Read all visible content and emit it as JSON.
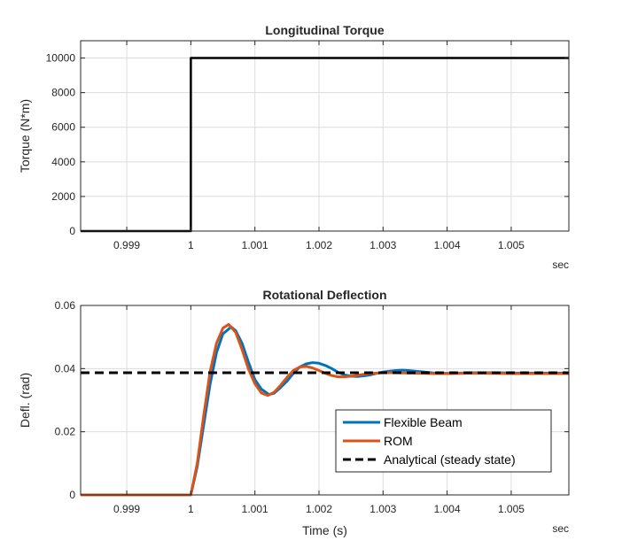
{
  "chart_data": [
    {
      "type": "line",
      "title": "Longitudinal Torque",
      "xlabel": "",
      "ylabel": "Torque (N*m)",
      "x_unit_label": "sec",
      "xlim": [
        0.99828,
        1.0059
      ],
      "ylim": [
        0,
        11000
      ],
      "xticks": [
        0.999,
        1,
        1.001,
        1.002,
        1.003,
        1.004,
        1.005
      ],
      "xtick_labels": [
        "0.999",
        "1",
        "1.001",
        "1.002",
        "1.003",
        "1.004",
        "1.005"
      ],
      "yticks": [
        0,
        2000,
        4000,
        6000,
        8000,
        10000
      ],
      "ytick_labels": [
        "0",
        "2000",
        "4000",
        "6000",
        "8000",
        "10000"
      ],
      "grid": true,
      "series": [
        {
          "color": "#000000",
          "x": [
            0.99828,
            1.0,
            1.0,
            1.0059
          ],
          "y": [
            0,
            0,
            10000,
            10000
          ]
        }
      ]
    },
    {
      "type": "line",
      "title": "Rotational Deflection",
      "xlabel": "Time (s)",
      "ylabel": "Defl. (rad)",
      "x_unit_label": "sec",
      "xlim": [
        0.99828,
        1.0059
      ],
      "ylim": [
        0,
        0.06
      ],
      "xticks": [
        0.999,
        1,
        1.001,
        1.002,
        1.003,
        1.004,
        1.005
      ],
      "xtick_labels": [
        "0.999",
        "1",
        "1.001",
        "1.002",
        "1.003",
        "1.004",
        "1.005"
      ],
      "yticks": [
        0,
        0.02,
        0.04,
        0.06
      ],
      "ytick_labels": [
        "0",
        "0.02",
        "0.04",
        "0.06"
      ],
      "grid": true,
      "legend_position": "lower-right",
      "series": [
        {
          "name": "Flexible Beam",
          "color": "#0072BD",
          "x": [
            0.99828,
            1.0,
            1.0001,
            1.0002,
            1.0003,
            1.0004,
            1.0005,
            1.00063,
            1.0007,
            1.0008,
            1.0009,
            1.001,
            1.0011,
            1.00122,
            1.0013,
            1.0014,
            1.0015,
            1.0016,
            1.0017,
            1.0018,
            1.0019,
            1.002,
            1.0021,
            1.0022,
            1.0023,
            1.0024,
            1.0025,
            1.0026,
            1.0027,
            1.0028,
            1.0029,
            1.003,
            1.0031,
            1.0032,
            1.0033,
            1.0034,
            1.0035,
            1.0036,
            1.0037,
            1.0038,
            1.0039,
            1.004,
            1.0042,
            1.0044,
            1.0046,
            1.0048,
            1.005,
            1.0052,
            1.0055,
            1.0059
          ],
          "y": [
            0,
            0,
            0.009,
            0.022,
            0.035,
            0.045,
            0.051,
            0.0532,
            0.052,
            0.048,
            0.042,
            0.0365,
            0.0335,
            0.0318,
            0.0322,
            0.034,
            0.036,
            0.0385,
            0.0405,
            0.0415,
            0.0419,
            0.0417,
            0.041,
            0.04,
            0.0388,
            0.038,
            0.0376,
            0.0375,
            0.0377,
            0.038,
            0.0385,
            0.0389,
            0.0392,
            0.0394,
            0.0395,
            0.0394,
            0.0392,
            0.039,
            0.0388,
            0.0386,
            0.0385,
            0.0385,
            0.0386,
            0.0387,
            0.0387,
            0.0387,
            0.0386,
            0.0386,
            0.0386,
            0.0386
          ]
        },
        {
          "name": "ROM",
          "color": "#D95319",
          "x": [
            0.99828,
            1.0,
            1.0001,
            1.0002,
            1.0003,
            1.0004,
            1.0005,
            1.00059,
            1.0007,
            1.0008,
            1.0009,
            1.001,
            1.0011,
            1.0012,
            1.0013,
            1.0014,
            1.0015,
            1.0016,
            1.0017,
            1.0018,
            1.0019,
            1.002,
            1.0021,
            1.0022,
            1.0023,
            1.0024,
            1.0025,
            1.0026,
            1.0027,
            1.0028,
            1.0029,
            1.003,
            1.0032,
            1.0034,
            1.0036,
            1.0038,
            1.004,
            1.0043,
            1.0046,
            1.005,
            1.0054,
            1.0059
          ],
          "y": [
            0,
            0,
            0.01,
            0.025,
            0.039,
            0.048,
            0.0528,
            0.054,
            0.0515,
            0.046,
            0.0398,
            0.0352,
            0.0323,
            0.0315,
            0.0325,
            0.0347,
            0.0372,
            0.0394,
            0.0405,
            0.0407,
            0.0402,
            0.0394,
            0.0385,
            0.0378,
            0.0374,
            0.0374,
            0.0376,
            0.0379,
            0.0382,
            0.0384,
            0.0386,
            0.0387,
            0.0387,
            0.0386,
            0.0385,
            0.0384,
            0.0384,
            0.0385,
            0.0385,
            0.0384,
            0.0384,
            0.0384
          ]
        },
        {
          "name": "Analytical (steady state)",
          "color": "#000000",
          "dash": true,
          "x": [
            0.99828,
            1.0059
          ],
          "y": [
            0.0387,
            0.0387
          ]
        }
      ]
    }
  ]
}
